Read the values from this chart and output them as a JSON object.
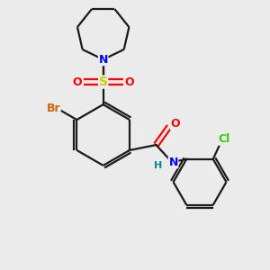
{
  "background_color": "#ebebeb",
  "bond_color": "#1a1a1a",
  "atom_colors": {
    "N": "#0000ff",
    "O": "#ff0000",
    "S": "#cccc00",
    "Br": "#cc6600",
    "Cl": "#33cc00",
    "H": "#008888",
    "C": "#1a1a1a"
  },
  "figsize": [
    3.0,
    3.0
  ],
  "dpi": 100,
  "xlim": [
    0,
    10
  ],
  "ylim": [
    0,
    10
  ]
}
